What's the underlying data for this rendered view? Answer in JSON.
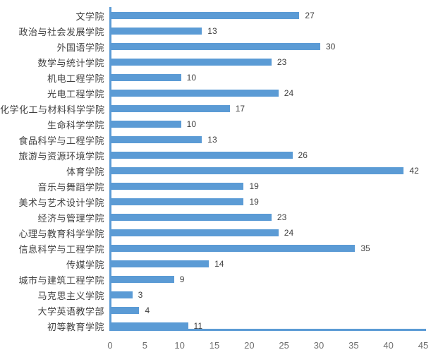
{
  "chart_data": {
    "type": "bar",
    "orientation": "horizontal",
    "title": "",
    "xlabel": "",
    "ylabel": "",
    "categories": [
      "文学院",
      "政治与社会发展学院",
      "外国语学院",
      "数学与统计学院",
      "机电工程学院",
      "光电工程学院",
      "化学化工与材料科学学院",
      "生命科学学院",
      "食品科学与工程学院",
      "旅游与资源环境学院",
      "体育学院",
      "音乐与舞蹈学院",
      "美术与艺术设计学院",
      "经济与管理学院",
      "心理与教育科学学院",
      "信息科学与工程学院",
      "传媒学院",
      "城市与建筑工程学院",
      "马克思主义学院",
      "大学英语教学部",
      "初等教育学院"
    ],
    "values": [
      27,
      13,
      30,
      23,
      10,
      24,
      17,
      10,
      13,
      26,
      42,
      19,
      19,
      23,
      24,
      35,
      14,
      9,
      3,
      4,
      11
    ],
    "xlim": [
      0,
      45
    ],
    "x_ticks": [
      0,
      5,
      10,
      15,
      20,
      25,
      30,
      35,
      40,
      45
    ],
    "data_labels": true,
    "grid": false,
    "legend": false,
    "colors": {
      "bar": "#5B9BD5",
      "axis_line": "#5B9BD5",
      "category_label": "#404040",
      "value_label": "#404040",
      "tick_label": "#6E6E6E",
      "background": "#FFFFFF"
    }
  }
}
